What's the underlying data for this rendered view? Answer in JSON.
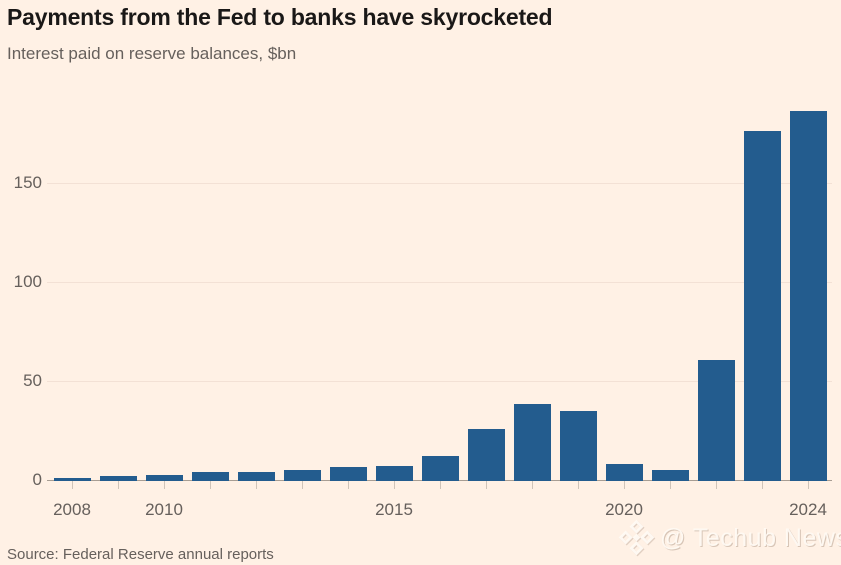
{
  "header": {
    "title": "Payments from the Fed to banks have skyrocketed",
    "subtitle": "Interest paid on reserve balances, $bn"
  },
  "footer": {
    "source": "Source: Federal Reserve annual reports",
    "watermark": {
      "logo_icon": "diamond-logo-icon",
      "text": "@ Techub News"
    }
  },
  "colors": {
    "background": "#FFF1E5",
    "bar": "#235C8E",
    "title_text": "#1A1817",
    "muted_text": "#66605C",
    "baseline": "#A79D93",
    "gridline": "#F3E1D5",
    "tick": "#CFC4B9"
  },
  "chart_data": {
    "type": "bar",
    "title": "Payments from the Fed to banks have skyrocketed",
    "subtitle": "Interest paid on reserve balances, $bn",
    "categories": [
      "2008",
      "2009",
      "2010",
      "2011",
      "2012",
      "2013",
      "2014",
      "2015",
      "2016",
      "2017",
      "2018",
      "2019",
      "2020",
      "2021",
      "2022",
      "2023",
      "2024"
    ],
    "values": [
      0.8,
      2.2,
      2.6,
      3.8,
      3.9,
      5.2,
      6.7,
      6.9,
      12.0,
      25.9,
      38.5,
      34.8,
      7.9,
      5.3,
      60.4,
      176.3,
      186.5
    ],
    "xlabel": "",
    "ylabel": "",
    "y_ticks": [
      0,
      50,
      100,
      150
    ],
    "x_tick_labels": [
      "2008",
      "2010",
      "2015",
      "2020",
      "2024"
    ],
    "ylim": [
      0,
      190
    ],
    "grid": "horizontal",
    "legend": "none",
    "source": "Source: Federal Reserve annual reports"
  }
}
